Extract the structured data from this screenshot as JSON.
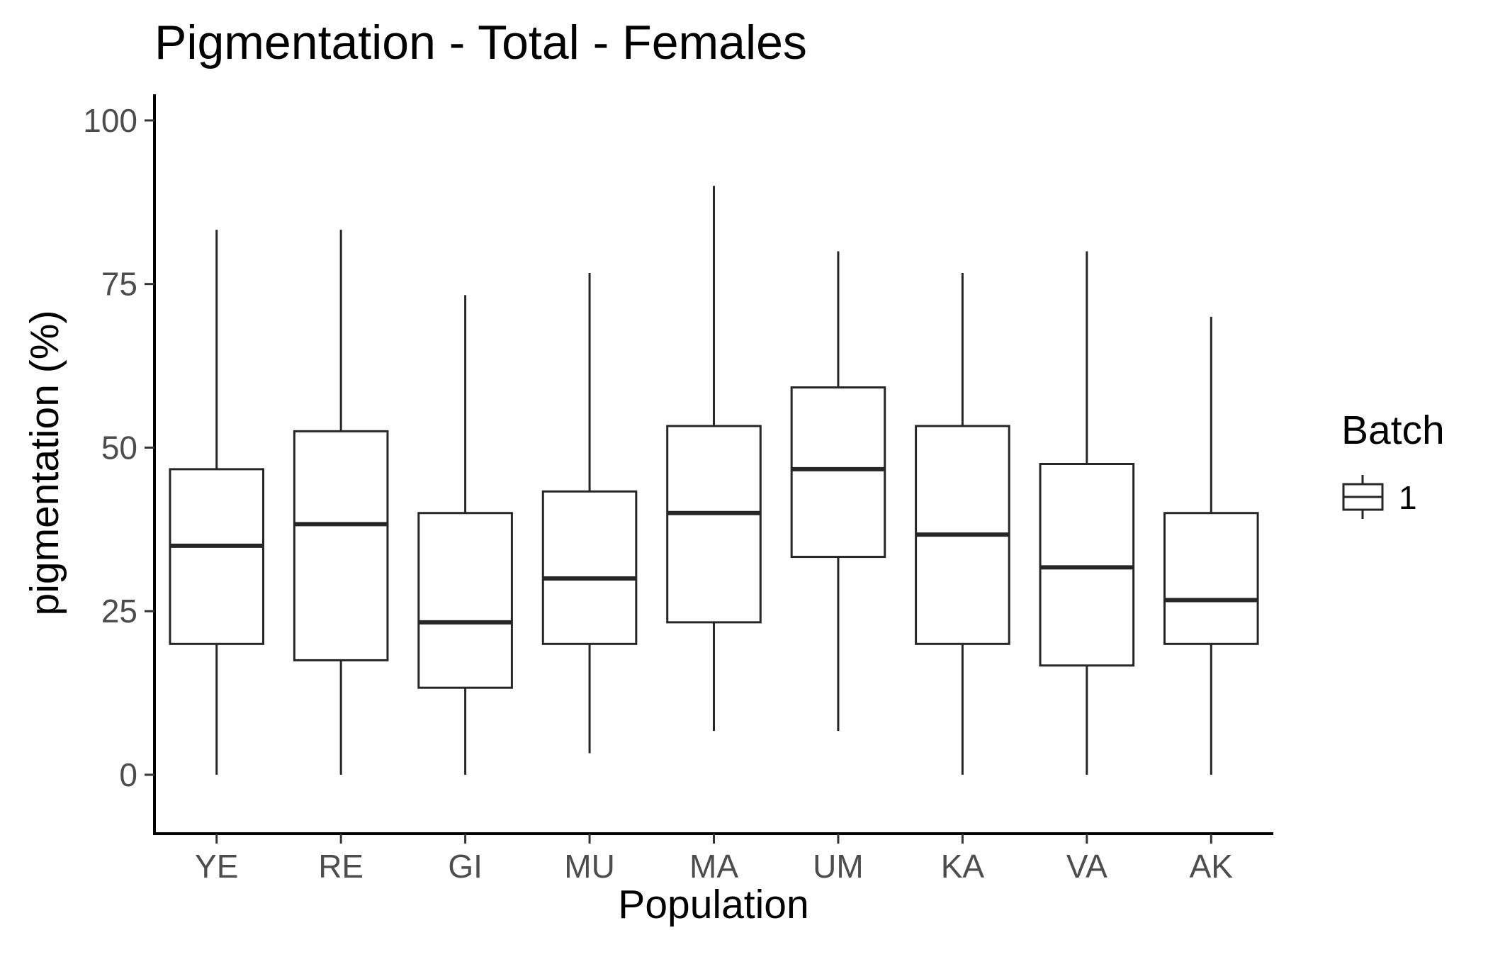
{
  "chart_data": {
    "type": "box",
    "title": "Pigmentation - Total - Females",
    "xlabel": "Population",
    "ylabel": "pigmentation (%)",
    "ylim": [
      -9,
      104
    ],
    "yticks": [
      0,
      25,
      50,
      75,
      100
    ],
    "grid": false,
    "legend": {
      "title": "Batch",
      "entries": [
        "1"
      ],
      "placement": "right"
    },
    "categories": [
      "YE",
      "RE",
      "GI",
      "MU",
      "MA",
      "UM",
      "KA",
      "VA",
      "AK"
    ],
    "series": [
      {
        "name": "1",
        "boxes": [
          {
            "category": "YE",
            "min": 0,
            "q1": 20,
            "median": 35,
            "q3": 46.7,
            "max": 83.3
          },
          {
            "category": "RE",
            "min": 0,
            "q1": 17.5,
            "median": 38.3,
            "q3": 52.5,
            "max": 83.3
          },
          {
            "category": "GI",
            "min": 0,
            "q1": 13.3,
            "median": 23.3,
            "q3": 40,
            "max": 73.3
          },
          {
            "category": "MU",
            "min": 3.3,
            "q1": 20,
            "median": 30,
            "q3": 43.3,
            "max": 76.7
          },
          {
            "category": "MA",
            "min": 6.7,
            "q1": 23.3,
            "median": 40,
            "q3": 53.3,
            "max": 90
          },
          {
            "category": "UM",
            "min": 6.7,
            "q1": 33.3,
            "median": 46.7,
            "q3": 59.2,
            "max": 80
          },
          {
            "category": "KA",
            "min": 0,
            "q1": 20,
            "median": 36.7,
            "q3": 53.3,
            "max": 76.7
          },
          {
            "category": "VA",
            "min": 0,
            "q1": 16.7,
            "median": 31.7,
            "q3": 47.5,
            "max": 80
          },
          {
            "category": "AK",
            "min": 0,
            "q1": 20,
            "median": 26.7,
            "q3": 40,
            "max": 70
          }
        ]
      }
    ],
    "colors": {
      "box_stroke": "#262626",
      "axis": "#000000",
      "tick_label": "#4d4d4d"
    }
  }
}
